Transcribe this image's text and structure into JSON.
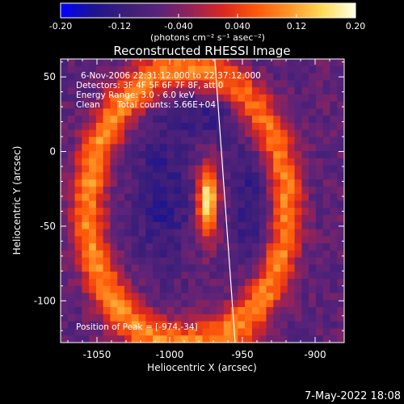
{
  "colorbar": {
    "ticks": [
      "-0.20",
      "-0.12",
      "-0.040",
      "0.040",
      "0.12",
      "0.20"
    ],
    "tick_values": [
      -0.2,
      -0.12,
      -0.04,
      0.04,
      0.12,
      0.2
    ],
    "range": [
      -0.2,
      0.2
    ],
    "units": "(photons cm⁻² s⁻¹ asec⁻²)"
  },
  "title": "Reconstructed RHESSI Image",
  "annotations": {
    "time": "6-Nov-2006 22:31:12.000 to 22:37:12.000",
    "detectors": "Detectors: 3F 4F 5F 6F 7F 8F, att 0",
    "energy": "Energy Range: 3.0 - 6.0 keV",
    "clean_label": "Clean",
    "counts": "Total counts: 5.66E+04",
    "peak": "Position of Peak = [-974,-34]"
  },
  "footer_date": "7-May-2022 18:08",
  "chart_data": {
    "type": "heatmap",
    "title": "Reconstructed RHESSI Image",
    "xlabel": "Heliocentric X (arcsec)",
    "ylabel": "Heliocentric Y (arcsec)",
    "xlim": [
      -1075,
      -880
    ],
    "ylim": [
      -128,
      62
    ],
    "x_ticks": [
      -1050,
      -1000,
      -950,
      -900
    ],
    "x_tick_labels": [
      "-1050",
      "-1000",
      "-950",
      "-900"
    ],
    "y_ticks": [
      50,
      0,
      -50,
      -100
    ],
    "y_tick_labels": [
      "50",
      "0",
      "-50",
      "-100"
    ],
    "peak": {
      "x": -974,
      "y": -34
    },
    "colormap": [
      "#0000ff",
      "#1e1490",
      "#3c1e78",
      "#5a237a",
      "#962357",
      "#dc281e",
      "#ff5a0a",
      "#ff9628",
      "#ffdc5a",
      "#ffffe6"
    ],
    "limb_line": [
      {
        "x": -969,
        "y": 62
      },
      {
        "x": -955,
        "y": -128
      }
    ]
  }
}
